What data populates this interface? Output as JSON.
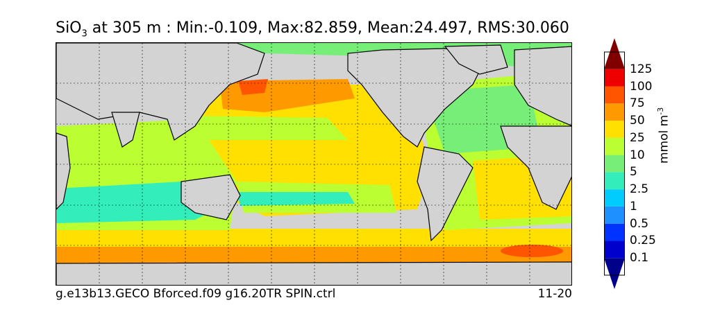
{
  "title": {
    "species": "SiO",
    "subscript": "3",
    "rest": " at 305 m : Min:-0.109, Max:82.859, Mean:24.497, RMS:30.060"
  },
  "footer": {
    "run": "g.e13b13.GECO Bforced.f09 g16.20TR SPIN.ctrl",
    "period": "11-20"
  },
  "colorbar": {
    "units_base": "mmol m",
    "units_exp": "-3",
    "levels": [
      "0.1",
      "0.25",
      "0.5",
      "1",
      "2.5",
      "5",
      "10",
      "25",
      "50",
      "75",
      "100",
      "125"
    ],
    "colors": [
      "#00008b",
      "#0000cd",
      "#0033ff",
      "#1e90ff",
      "#00ccff",
      "#33eebb",
      "#77ee77",
      "#bbff33",
      "#ffe000",
      "#ff9900",
      "#ff5500",
      "#ee0000",
      "#800000"
    ]
  },
  "map": {
    "land_color": "#d3d3d3",
    "grid_style": "dashed"
  }
}
